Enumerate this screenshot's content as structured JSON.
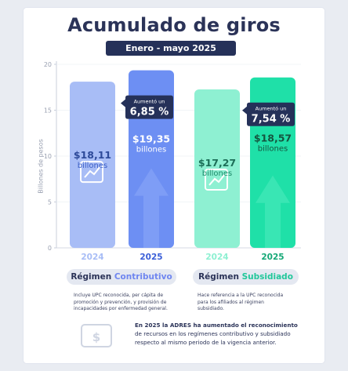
{
  "header": {
    "title": "Acumulado de giros",
    "subtitle": "Enero - mayo 2025"
  },
  "chart_data": {
    "type": "bar",
    "ylabel": "Billones de pesos",
    "ylim": [
      0,
      20
    ],
    "yticks": [
      0,
      5,
      10,
      15,
      20
    ],
    "categories": [
      "2024",
      "2025",
      "2024",
      "2025"
    ],
    "bars": [
      {
        "category": "2024",
        "group": "Régimen Contributivo",
        "value": 18.11,
        "value_label": "$18,11",
        "unit_label": "billones",
        "color": "#a8bdf6"
      },
      {
        "category": "2025",
        "group": "Régimen Contributivo",
        "value": 19.35,
        "value_label": "$19,35",
        "unit_label": "billones",
        "color": "#6d8ff3"
      },
      {
        "category": "2024",
        "group": "Régimen Subsidiado",
        "value": 17.27,
        "value_label": "$17,27",
        "unit_label": "billones",
        "color": "#8ef0d2"
      },
      {
        "category": "2025",
        "group": "Régimen Subsidiado",
        "value": 18.57,
        "value_label": "$18,57",
        "unit_label": "billones",
        "color": "#1fe0a8"
      }
    ],
    "annotations": [
      {
        "bar": 1,
        "line1": "Aumentó un",
        "line2": "6,85 %",
        "color": "#253159"
      },
      {
        "bar": 3,
        "line1": "Aumentó un",
        "line2": "7,54 %",
        "color": "#253159"
      }
    ],
    "legend": "bottom"
  },
  "groups": [
    {
      "prefix": "Régimen ",
      "accent": "Contributivo",
      "accent_color": "#6f86f0",
      "note": "Incluye UPC reconocida, per cápita de promoción y prevención, y provisión de incapacidades por enfermedad general."
    },
    {
      "prefix": "Régimen ",
      "accent": "Subsidiado",
      "accent_color": "#21c79a",
      "note": "Hace referencia a la UPC reconocida para los afiliados al régimen subsidiado."
    }
  ],
  "footer": {
    "icon": "money-icon",
    "bold": "En 2025 la ADRES ha aumentado el reconocimiento",
    "rest": "de recursos en los regímenes contributivo y subsidiado respecto al mismo periodo de la vigencia anterior."
  }
}
